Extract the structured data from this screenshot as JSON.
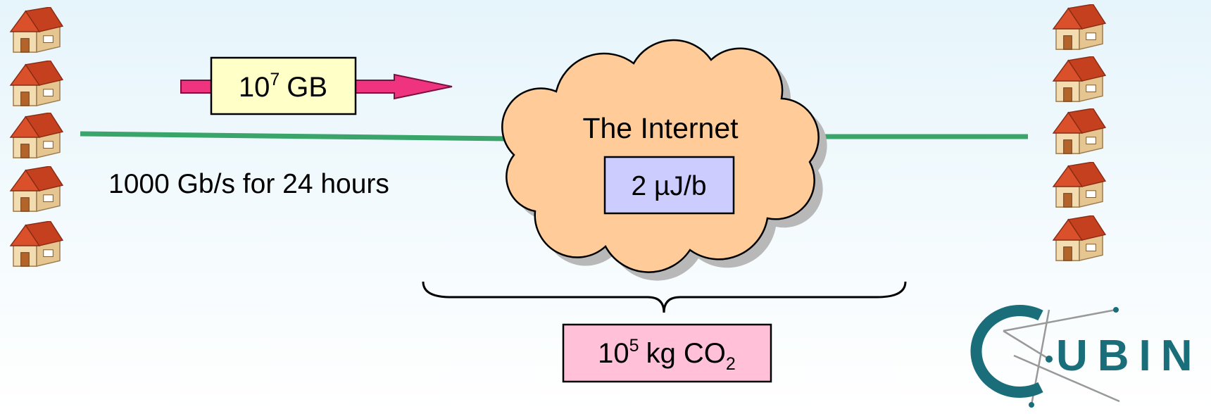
{
  "transfer": {
    "amount": {
      "base": "10",
      "exponent": "7",
      "unit": "GB"
    },
    "rate": "1000 Gb/s for 24 hours"
  },
  "cloud": {
    "label": "The Internet",
    "energy": "2 µJ/b"
  },
  "emissions": {
    "base": "10",
    "exponent": "5",
    "unit": "kg CO",
    "subscript": "2"
  },
  "logo": {
    "text": "UBIN"
  }
}
